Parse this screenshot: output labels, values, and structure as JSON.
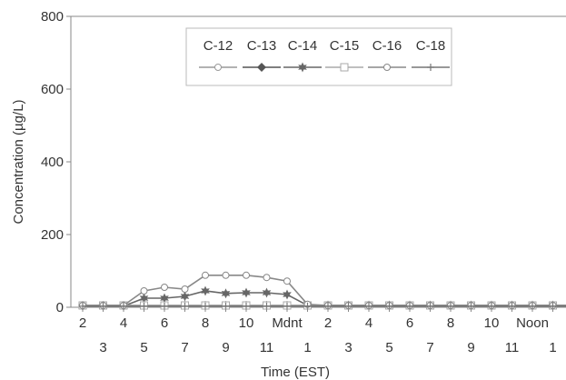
{
  "chart_data": {
    "type": "line",
    "title": "",
    "xlabel": "Time (EST)",
    "ylabel": "Concentration (µg/L)",
    "ylim": [
      0,
      800
    ],
    "yticks": [
      0,
      200,
      400,
      600,
      800
    ],
    "x_count": 25,
    "x_tick_labels": [
      "2",
      "3",
      "4",
      "5",
      "6",
      "7",
      "8",
      "9",
      "10",
      "11",
      "Mdnt",
      "1",
      "2",
      "3",
      "4",
      "5",
      "6",
      "7",
      "8",
      "9",
      "10",
      "11",
      "Noon",
      "1",
      "2"
    ],
    "legend_position": "top-center",
    "grid": false,
    "series": [
      {
        "name": "C-12",
        "marker": "circle-open",
        "color": "#999999",
        "values": [
          5,
          5,
          5,
          5,
          5,
          5,
          5,
          5,
          5,
          5,
          5,
          5,
          5,
          5,
          5,
          5,
          5,
          5,
          5,
          5,
          5,
          5,
          5,
          5,
          5
        ]
      },
      {
        "name": "C-13",
        "marker": "diamond-filled",
        "color": "#555555",
        "values": [
          5,
          5,
          5,
          5,
          5,
          5,
          5,
          5,
          5,
          5,
          5,
          5,
          5,
          5,
          5,
          5,
          5,
          5,
          5,
          5,
          5,
          5,
          5,
          5,
          5
        ]
      },
      {
        "name": "C-14",
        "marker": "star-filled",
        "color": "#666666",
        "values": [
          3,
          3,
          3,
          25,
          25,
          30,
          45,
          38,
          40,
          40,
          35,
          5,
          5,
          5,
          5,
          5,
          5,
          5,
          5,
          5,
          5,
          5,
          5,
          5,
          5
        ]
      },
      {
        "name": "C-15",
        "marker": "square-open",
        "color": "#aaaaaa",
        "values": [
          5,
          5,
          5,
          5,
          5,
          5,
          5,
          5,
          5,
          5,
          5,
          5,
          5,
          5,
          5,
          5,
          5,
          5,
          5,
          5,
          5,
          5,
          5,
          5,
          5
        ]
      },
      {
        "name": "C-16",
        "marker": "circle-open",
        "color": "#888888",
        "values": [
          5,
          5,
          5,
          45,
          55,
          50,
          88,
          88,
          88,
          82,
          72,
          8,
          5,
          5,
          5,
          5,
          5,
          5,
          5,
          5,
          5,
          5,
          5,
          5,
          5
        ]
      },
      {
        "name": "C-18",
        "marker": "plus",
        "color": "#777777",
        "values": [
          3,
          3,
          3,
          3,
          3,
          3,
          3,
          3,
          3,
          3,
          3,
          3,
          3,
          3,
          3,
          3,
          3,
          3,
          3,
          3,
          3,
          3,
          3,
          3,
          3
        ]
      }
    ]
  }
}
